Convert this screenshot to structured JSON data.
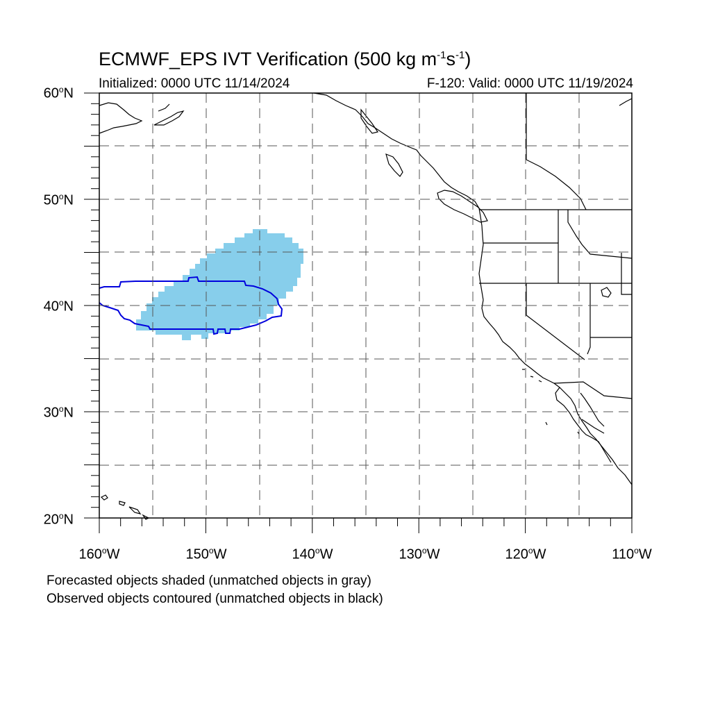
{
  "title_main": "ECMWF_EPS IVT Verification (500 kg m",
  "title_exp1": "-1",
  "title_mid": "s",
  "title_exp2": "-1",
  "title_close": ")",
  "subtitle_left": "Initialized: 0000 UTC 11/14/2024",
  "subtitle_right": "F-120: Valid: 0000 UTC 11/19/2024",
  "lat_labels": {
    "l60": {
      "num": "60",
      "deg": "o",
      "hemi": "N"
    },
    "l50": {
      "num": "50",
      "deg": "o",
      "hemi": "N"
    },
    "l40": {
      "num": "40",
      "deg": "o",
      "hemi": "N"
    },
    "l30": {
      "num": "30",
      "deg": "o",
      "hemi": "N"
    },
    "l20": {
      "num": "20",
      "deg": "o",
      "hemi": "N"
    }
  },
  "lon_labels": {
    "w160": {
      "num": "160",
      "deg": "o",
      "hemi": "W"
    },
    "w150": {
      "num": "150",
      "deg": "o",
      "hemi": "W"
    },
    "w140": {
      "num": "140",
      "deg": "o",
      "hemi": "W"
    },
    "w130": {
      "num": "130",
      "deg": "o",
      "hemi": "W"
    },
    "w120": {
      "num": "120",
      "deg": "o",
      "hemi": "W"
    },
    "w110": {
      "num": "110",
      "deg": "o",
      "hemi": "W"
    }
  },
  "notes": {
    "forecast": "Forecasted objects shaded (unmatched objects in gray)",
    "observed": "Observed objects contoured (unmatched objects in black)"
  },
  "colors": {
    "forecast_fill": "#87ceeb",
    "observed_contour": "#0000dd",
    "grid": "#555555",
    "coast": "#000000"
  },
  "map_extent": {
    "lon_min": -160,
    "lon_max": -110,
    "lat_min": 20,
    "lat_max": 60
  }
}
